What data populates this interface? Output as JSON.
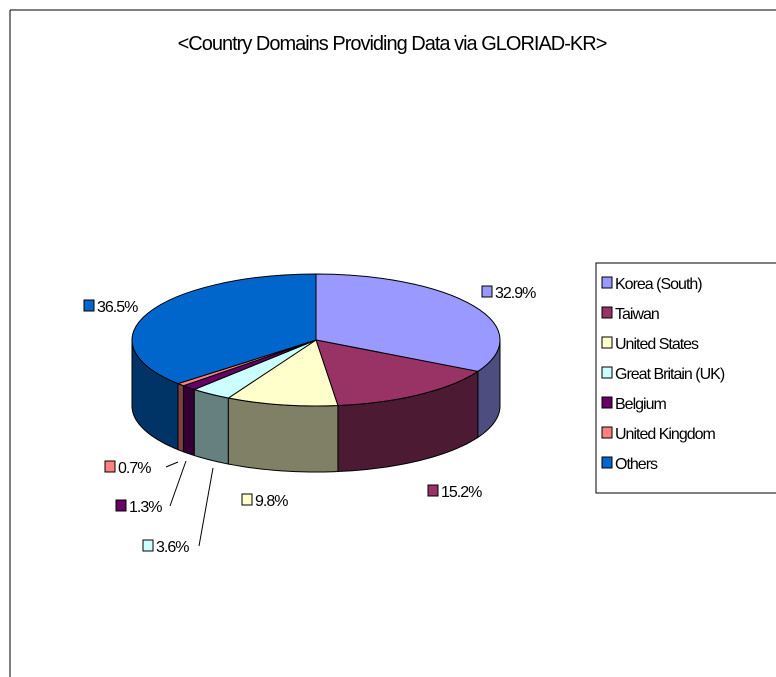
{
  "chart_data": {
    "type": "pie",
    "title": "<Country Domains Providing Data via GLORIAD-KR>",
    "series": [
      {
        "name": "Korea (South)",
        "value": 32.9,
        "label": "32.9%",
        "color": "#9999ff",
        "side": "#4d4d80"
      },
      {
        "name": "Taiwan",
        "value": 15.2,
        "label": "15.2%",
        "color": "#993366",
        "side": "#4d1a33"
      },
      {
        "name": "United States",
        "value": 9.8,
        "label": "9.8%",
        "color": "#ffffcc",
        "side": "#808066"
      },
      {
        "name": "Great Britain (UK)",
        "value": 3.6,
        "label": "3.6%",
        "color": "#ccffff",
        "side": "#668080"
      },
      {
        "name": "Belgium",
        "value": 1.3,
        "label": "1.3%",
        "color": "#660066",
        "side": "#330033"
      },
      {
        "name": "United Kingdom",
        "value": 0.7,
        "label": "0.7%",
        "color": "#ff8080",
        "side": "#804040"
      },
      {
        "name": "Others",
        "value": 36.5,
        "label": "36.5%",
        "color": "#0066cc",
        "side": "#003366"
      }
    ],
    "legend": "right",
    "style": "3d-pie"
  }
}
